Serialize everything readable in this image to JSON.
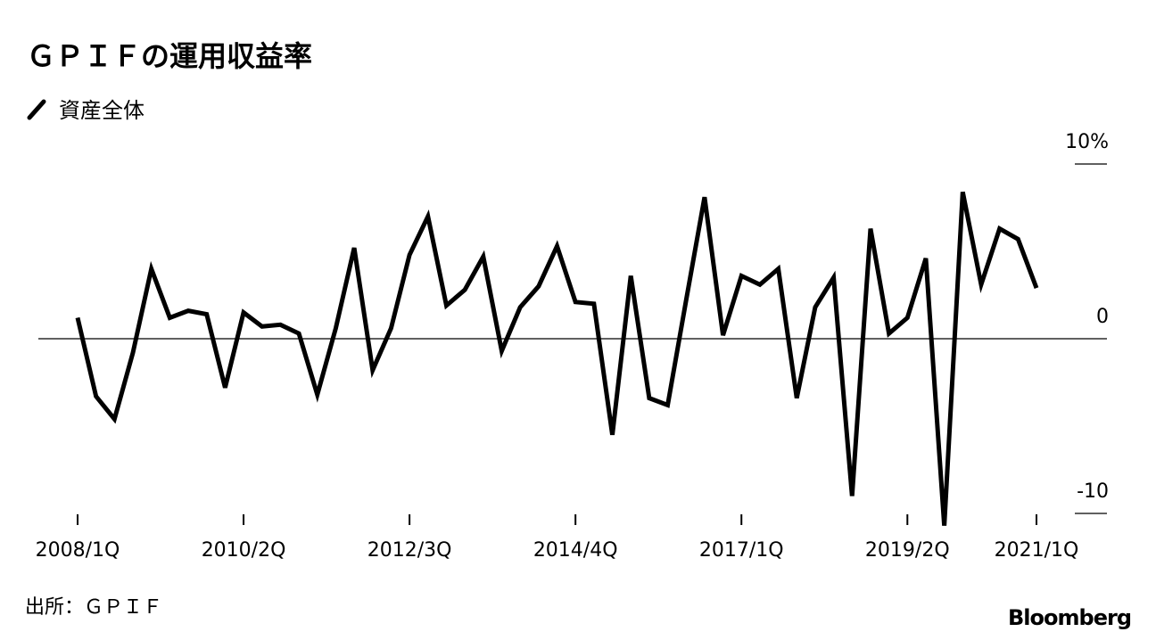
{
  "chart_data": {
    "type": "line",
    "title": "ＧＰＩＦの運用収益率",
    "source": "出所：ＧＰＩＦ",
    "brand": "Bloomberg",
    "categories": [
      "2008/1Q",
      null,
      null,
      null,
      null,
      null,
      null,
      null,
      null,
      "2010/2Q",
      null,
      null,
      null,
      null,
      null,
      null,
      null,
      null,
      "2012/3Q",
      null,
      null,
      null,
      null,
      null,
      null,
      null,
      null,
      "2014/4Q",
      null,
      null,
      null,
      null,
      null,
      null,
      null,
      null,
      "2017/1Q",
      null,
      null,
      null,
      null,
      null,
      null,
      null,
      null,
      "2019/2Q",
      null,
      null,
      null,
      null,
      null,
      null,
      "2021/1Q"
    ],
    "series": [
      {
        "name": "資産全体",
        "color": "#000000",
        "values": [
          1.2,
          -3.3,
          -4.6,
          -0.8,
          4.0,
          1.2,
          1.6,
          1.4,
          -2.8,
          1.5,
          0.7,
          0.8,
          0.3,
          -3.2,
          0.6,
          5.2,
          -1.8,
          0.6,
          4.8,
          7.0,
          1.9,
          2.8,
          4.7,
          -0.7,
          1.8,
          3.0,
          5.3,
          2.1,
          2.0,
          -5.5,
          3.6,
          -3.4,
          -3.8,
          2.2,
          8.1,
          0.2,
          3.6,
          3.1,
          4.0,
          -3.4,
          1.8,
          3.5,
          -9.0,
          6.3,
          0.3,
          1.2,
          4.6,
          -10.7,
          8.4,
          3.1,
          6.3,
          5.7,
          2.9
        ]
      }
    ],
    "ylim": [
      -10,
      10
    ],
    "yticks": [
      {
        "value": 10,
        "label": "10%"
      },
      0,
      -10
    ]
  }
}
